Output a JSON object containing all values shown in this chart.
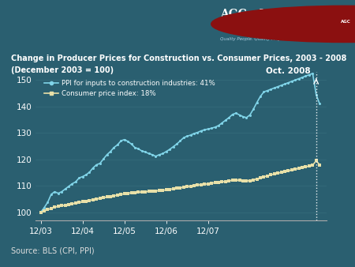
{
  "title_line1": "Change in Producer Prices for Construction vs. Consumer Prices, 2003 - 2008",
  "title_line2": "(December 2003 = 100)",
  "source": "Source: BLS (CPI, PPI)",
  "bg_color": "#2a5f70",
  "outer_bg_color": "#2a5f70",
  "header_bg_color": "#1a3a4a",
  "footer_bg_color": "#2a5f70",
  "ppi_color": "#80d4e8",
  "cpi_color": "#e8e0a8",
  "title_color": "#ffffff",
  "source_color": "#dddddd",
  "separator_color": "#8b1a1a",
  "ylim": [
    97,
    153
  ],
  "yticks": [
    100,
    110,
    120,
    130,
    140,
    150
  ],
  "xtick_labels": [
    "12/03",
    "12/04",
    "12/05",
    "12/06",
    "12/07"
  ],
  "oct2008_label": "Oct. 2008",
  "ppi_label": "PPI for inputs to construction industries: 41%",
  "cpi_label": "Consumer price index: 18%",
  "ppi_data": [
    100,
    101.8,
    103.8,
    106.8,
    107.8,
    107.2,
    107.8,
    108.8,
    109.8,
    110.8,
    111.5,
    113.0,
    113.5,
    114.2,
    115.2,
    116.8,
    118.0,
    118.5,
    120.2,
    121.8,
    123.0,
    124.5,
    125.5,
    127.0,
    127.5,
    126.8,
    125.8,
    124.5,
    124.0,
    123.2,
    122.8,
    122.2,
    121.8,
    121.2,
    121.8,
    122.2,
    123.0,
    123.8,
    124.8,
    125.8,
    127.0,
    128.2,
    128.8,
    129.2,
    129.8,
    130.2,
    130.8,
    131.2,
    131.5,
    131.8,
    132.2,
    132.8,
    133.8,
    134.8,
    135.8,
    137.0,
    137.5,
    136.8,
    136.2,
    135.8,
    136.8,
    139.0,
    141.5,
    143.8,
    145.5,
    146.0,
    146.5,
    147.0,
    147.5,
    148.0,
    148.5,
    149.0,
    149.5,
    150.0,
    150.5,
    151.0,
    151.5,
    152.0,
    152.5,
    144.5,
    141.0
  ],
  "cpi_data": [
    100,
    100.5,
    101.0,
    101.5,
    102.0,
    102.2,
    102.5,
    102.7,
    103.0,
    103.2,
    103.5,
    103.7,
    104.0,
    104.2,
    104.5,
    104.8,
    105.0,
    105.3,
    105.5,
    105.8,
    106.0,
    106.3,
    106.5,
    106.8,
    107.0,
    107.2,
    107.4,
    107.5,
    107.6,
    107.7,
    107.8,
    107.9,
    108.0,
    108.1,
    108.2,
    108.3,
    108.5,
    108.7,
    108.9,
    109.1,
    109.3,
    109.5,
    109.7,
    109.9,
    110.1,
    110.3,
    110.5,
    110.6,
    110.8,
    111.0,
    111.2,
    111.3,
    111.5,
    111.7,
    111.9,
    112.1,
    112.2,
    112.1,
    112.0,
    111.9,
    112.0,
    112.3,
    112.6,
    113.0,
    113.4,
    113.8,
    114.2,
    114.5,
    114.8,
    115.1,
    115.4,
    115.7,
    116.0,
    116.3,
    116.6,
    116.9,
    117.2,
    117.5,
    117.8,
    119.5,
    118.0
  ],
  "n_months": 81,
  "oct_idx": 79
}
